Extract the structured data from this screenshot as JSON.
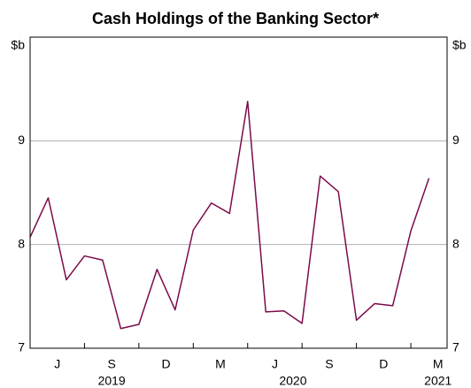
{
  "chart_data": {
    "type": "line",
    "title": "Cash Holdings of the Banking Sector*",
    "y_unit": "$b",
    "x": [
      "2019-05",
      "2019-06",
      "2019-07",
      "2019-08",
      "2019-09",
      "2019-10",
      "2019-11",
      "2019-12",
      "2020-01",
      "2020-02",
      "2020-03",
      "2020-04",
      "2020-05",
      "2020-06",
      "2020-07",
      "2020-08",
      "2020-09",
      "2020-10",
      "2020-11",
      "2020-12",
      "2021-01",
      "2021-02",
      "2021-03"
    ],
    "series": [
      {
        "name": "Cash holdings",
        "color": "#7b0b4a",
        "values": [
          8.07,
          8.45,
          7.66,
          7.89,
          7.85,
          7.19,
          7.23,
          7.76,
          7.37,
          8.14,
          8.4,
          8.3,
          9.38,
          7.35,
          7.36,
          7.24,
          8.66,
          8.51,
          7.27,
          7.43,
          7.41,
          8.13,
          8.64
        ]
      }
    ],
    "xlim": [
      "2019-05",
      "2021-04"
    ],
    "xticks": [
      "2019-08",
      "2019-11",
      "2020-02",
      "2020-05",
      "2020-08",
      "2020-11",
      "2021-02"
    ],
    "xticklabels": [
      {
        "value": "2019-06",
        "label": "J"
      },
      {
        "value": "2019-09",
        "label": "S"
      },
      {
        "value": "2019-12",
        "label": "D"
      },
      {
        "value": "2020-03",
        "label": "M"
      },
      {
        "value": "2020-06",
        "label": "J"
      },
      {
        "value": "2020-09",
        "label": "S"
      },
      {
        "value": "2020-12",
        "label": "D"
      },
      {
        "value": "2021-03",
        "label": "M"
      }
    ],
    "year_labels": [
      {
        "value": "2019-09",
        "label": "2019"
      },
      {
        "value": "2020-07",
        "label": "2020"
      },
      {
        "value": "2021-03",
        "label": "2021"
      }
    ],
    "ylim": [
      7,
      10
    ],
    "yticks": [
      7,
      8,
      9
    ],
    "grid": true
  }
}
